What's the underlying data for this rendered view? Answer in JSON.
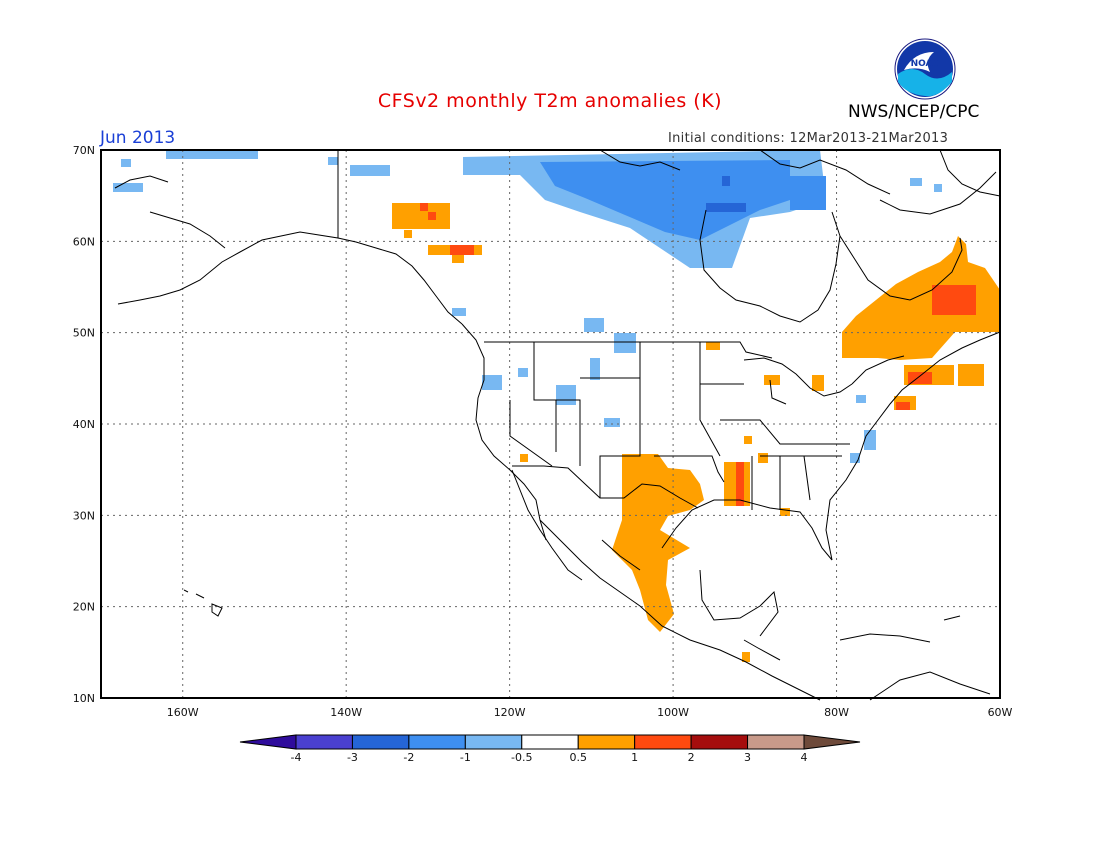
{
  "header": {
    "title": "CFSv2 monthly T2m anomalies (K)",
    "agency": "NWS/NCEP/CPC",
    "logo_text": "NOAA",
    "valid_month": "Jun 2013",
    "initial_conditions": "Initial conditions: 12Mar2013-21Mar2013"
  },
  "map": {
    "lat_range": [
      10,
      70
    ],
    "lon_range": [
      -170,
      -60
    ],
    "lat_ticks": [
      {
        "value": 70,
        "label": "70N"
      },
      {
        "value": 60,
        "label": "60N"
      },
      {
        "value": 50,
        "label": "50N"
      },
      {
        "value": 40,
        "label": "40N"
      },
      {
        "value": 30,
        "label": "30N"
      },
      {
        "value": 20,
        "label": "20N"
      },
      {
        "value": 10,
        "label": "10N"
      }
    ],
    "lon_ticks": [
      {
        "value": -160,
        "label": "160W"
      },
      {
        "value": -140,
        "label": "140W"
      },
      {
        "value": -120,
        "label": "120W"
      },
      {
        "value": -100,
        "label": "100W"
      },
      {
        "value": -80,
        "label": "80W"
      },
      {
        "value": -60,
        "label": "60W"
      }
    ],
    "grid": true
  },
  "colorbar": {
    "colors": [
      "#2f0c9c",
      "#4a40d0",
      "#2565d6",
      "#3e8ff0",
      "#78b8f2",
      "#ffffff",
      "#ffa000",
      "#ff4a10",
      "#a50d0d",
      "#c89a8a",
      "#6e4a3a"
    ],
    "labels": [
      "-4",
      "-3",
      "-2",
      "-1",
      "-0.5",
      "0.5",
      "1",
      "2",
      "3",
      "4"
    ]
  },
  "anomaly_regions": [
    {
      "region": "Canadian Arctic",
      "level": "-0.5 to -1",
      "color": "#78b8f2"
    },
    {
      "region": "Hudson Bay north",
      "level": "-1 to -2",
      "color": "#3e8ff0"
    },
    {
      "region": "Hudson Bay core",
      "level": "-2 to -3",
      "color": "#2565d6"
    },
    {
      "region": "Yukon / British Columbia",
      "level": "0.5 to 1",
      "color": "#ffa000"
    },
    {
      "region": "Quebec / Labrador",
      "level": "0.5 to 1",
      "color": "#ffa000"
    },
    {
      "region": "Labrador core",
      "level": "1 to 2",
      "color": "#ff4a10"
    },
    {
      "region": "Southern Plains / Mexico",
      "level": "0.5 to 1",
      "color": "#ffa000"
    },
    {
      "region": "Lower Mississippi",
      "level": "0.5 to 1",
      "color": "#ffa000"
    }
  ]
}
